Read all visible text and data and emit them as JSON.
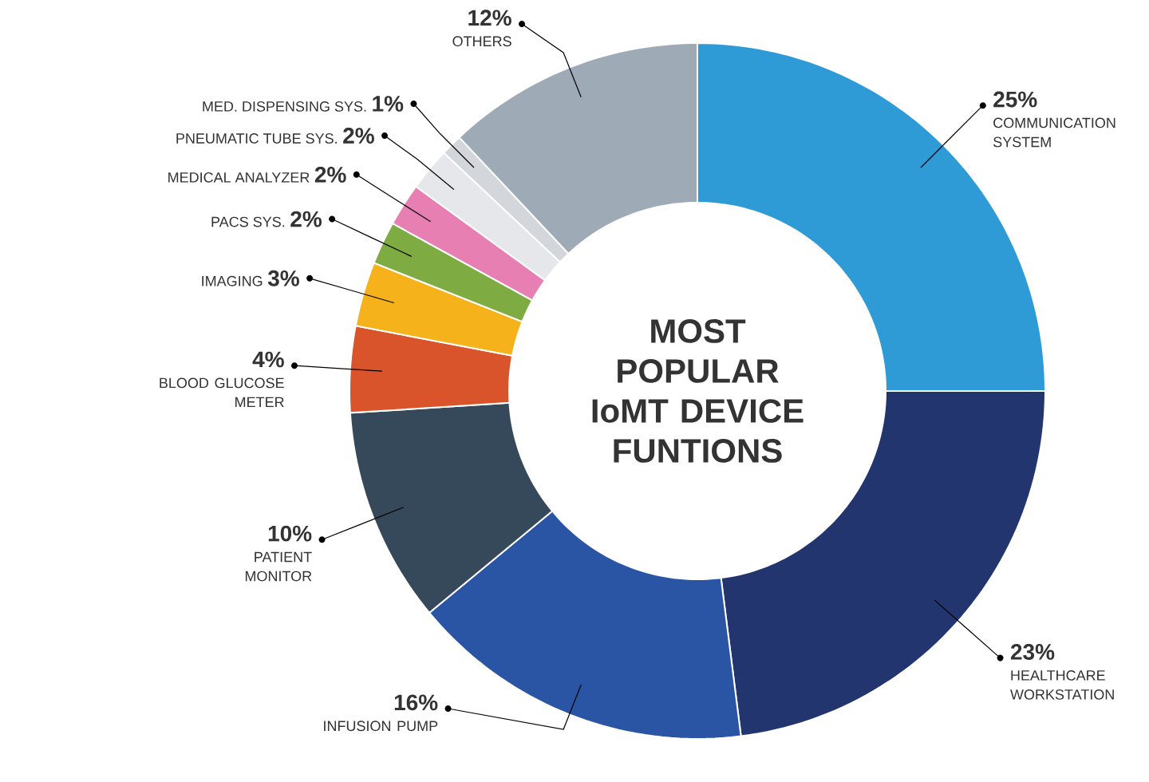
{
  "chart_data": {
    "type": "donut",
    "title": "MOST POPULAR IoMT DEVICE FUNTIONS",
    "categories": [
      "COMMUNICATION SYSTEM",
      "HEALTHCARE WORKSTATION",
      "INFUSION PUMP",
      "PATIENT MONITOR",
      "BLOOD GLUCOSE METER",
      "IMAGING",
      "PACS SYS.",
      "MEDICAL ANALYZER",
      "PNEUMATIC TUBE SYS.",
      "MED. DISPENSING SYS.",
      "OTHERS"
    ],
    "values": [
      25,
      23,
      16,
      10,
      4,
      3,
      2,
      2,
      2,
      1,
      12
    ],
    "value_labels": [
      "25%",
      "23%",
      "16%",
      "10%",
      "4%",
      "3%",
      "2%",
      "2%",
      "2%",
      "1%",
      "12%"
    ],
    "colors": [
      "#2e9ad6",
      "#22356e",
      "#2a55a5",
      "#36495a",
      "#d9542a",
      "#f5b21a",
      "#7fac42",
      "#e87fb2",
      "#e6e7eb",
      "#d3d6db",
      "#9eabb7"
    ]
  }
}
